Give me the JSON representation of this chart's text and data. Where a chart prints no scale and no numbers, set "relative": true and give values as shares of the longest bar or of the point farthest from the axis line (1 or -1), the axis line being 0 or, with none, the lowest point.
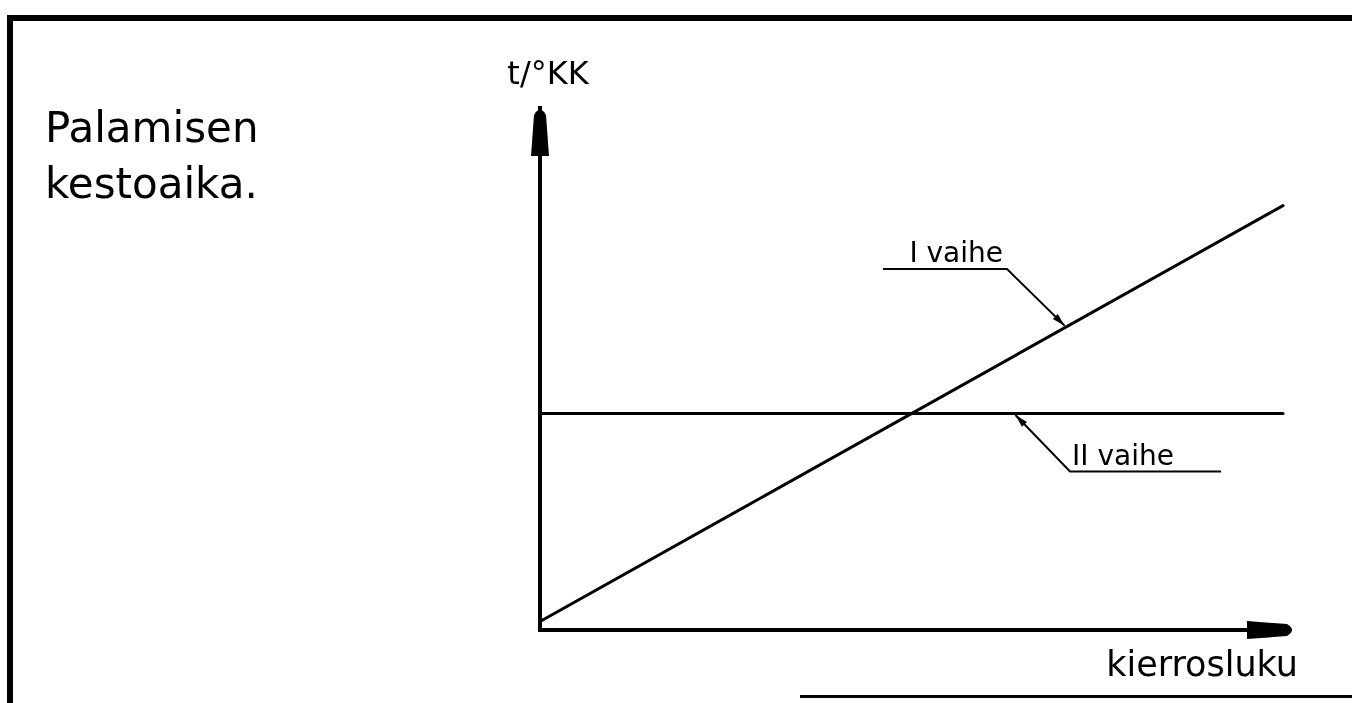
{
  "chart_data": {
    "type": "line",
    "title": "Palamisen kestoaika.",
    "xlabel": "kierrosluku",
    "ylabel": "t/°KK",
    "relative": true,
    "categories": [
      null,
      null
    ],
    "series": [
      {
        "name": "I vaihe",
        "color": "#000000",
        "values": [
          0.02,
          1
        ]
      },
      {
        "name": "II vaihe",
        "color": "#000000",
        "values": [
          0.51,
          0.51
        ]
      }
    ],
    "grid": false,
    "legend": false,
    "tick_labels": false,
    "marker": "none",
    "line_style": "solid"
  }
}
